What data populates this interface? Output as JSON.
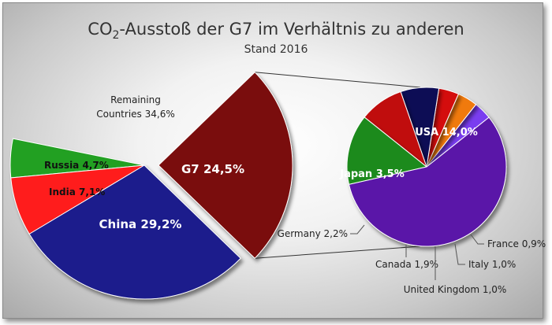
{
  "title": {
    "prefix": "CO",
    "subscript": "2",
    "rest": "-Ausstoß der G7 im Verhältnis zu anderen",
    "subtitle": "Stand 2016"
  },
  "colors": {
    "remaining": "#f2f2f2",
    "russia": "#22a022",
    "india": "#ff1a1a",
    "china": "#1a1a8c",
    "g7": "#7a0a0a",
    "usa": "#5a12a8",
    "japan": "#1e8a1e",
    "germany": "#c01010",
    "canada": "#0d0d55",
    "uk": "#d40d0d",
    "italy": "#f07a10",
    "france": "#7a3ef0"
  },
  "chart_data": [
    {
      "type": "pie",
      "title": "CO2-Ausstoß der G7 im Verhältnis zu anderen",
      "subtitle": "Stand 2016",
      "slices": [
        {
          "key": "remaining",
          "name": "Remaining Countries",
          "value": 34.6,
          "label_line1": "Remaining",
          "label_line2": "Countries 34,6%"
        },
        {
          "key": "russia",
          "name": "Russia",
          "value": 4.7,
          "label": "Russia 4,7%"
        },
        {
          "key": "india",
          "name": "India",
          "value": 7.1,
          "label": "India 7,1%"
        },
        {
          "key": "china",
          "name": "China",
          "value": 29.2,
          "label": "China 29,2%"
        },
        {
          "key": "g7",
          "name": "G7",
          "value": 24.5,
          "label": "G7 24,5%"
        }
      ]
    },
    {
      "type": "pie",
      "slices": [
        {
          "key": "usa",
          "name": "USA",
          "value": 14.0,
          "label": "USA 14,0%"
        },
        {
          "key": "japan",
          "name": "Japan",
          "value": 3.5,
          "label": "Japan 3,5%"
        },
        {
          "key": "germany",
          "name": "Germany",
          "value": 2.2,
          "label": "Germany 2,2%"
        },
        {
          "key": "canada",
          "name": "Canada",
          "value": 1.9,
          "label": "Canada 1,9%"
        },
        {
          "key": "uk",
          "name": "United Kingdom",
          "value": 1.0,
          "label": "United Kingdom 1,0%"
        },
        {
          "key": "italy",
          "name": "Italy",
          "value": 1.0,
          "label": "Italy 1,0%"
        },
        {
          "key": "france",
          "name": "France",
          "value": 0.9,
          "label": "France 0,9%"
        }
      ]
    }
  ]
}
